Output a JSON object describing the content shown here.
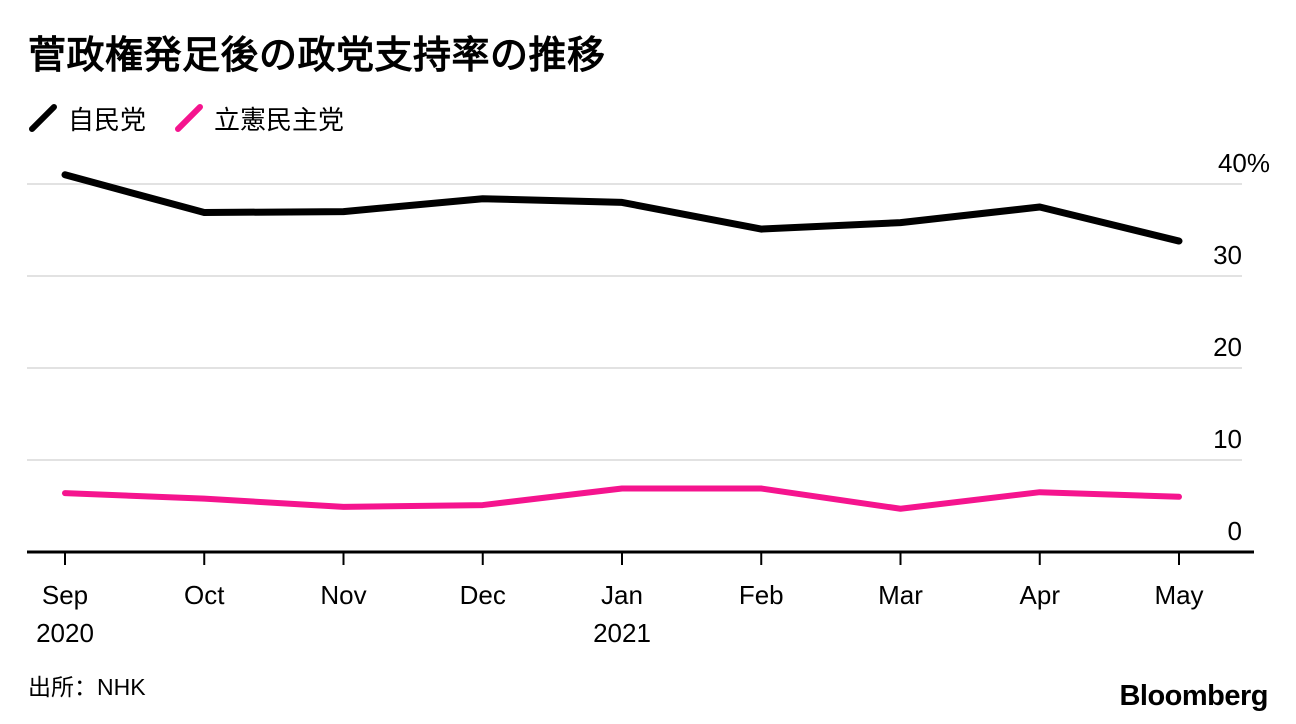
{
  "title": "菅政権発足後の政党支持率の推移",
  "legend": [
    {
      "label": "自民党",
      "color": "#000000"
    },
    {
      "label": "立憲民主党",
      "color": "#f5148e"
    }
  ],
  "source": "出所：NHK",
  "brand": "Bloomberg",
  "chart_data": {
    "type": "line",
    "title": "菅政権発足後の政党支持率の推移",
    "categories": [
      "Sep",
      "Oct",
      "Nov",
      "Dec",
      "Jan",
      "Feb",
      "Mar",
      "Apr",
      "May"
    ],
    "xticks": [
      {
        "label": "Sep",
        "sublabel": "2020"
      },
      {
        "label": "Oct"
      },
      {
        "label": "Nov"
      },
      {
        "label": "Dec"
      },
      {
        "label": "Jan",
        "sublabel": "2021"
      },
      {
        "label": "Feb"
      },
      {
        "label": "Mar"
      },
      {
        "label": "Apr"
      },
      {
        "label": "May"
      }
    ],
    "series": [
      {
        "name": "自民党",
        "color": "#000000",
        "values": [
          41.0,
          36.9,
          37.0,
          38.4,
          38.0,
          35.1,
          35.8,
          37.5,
          33.8
        ]
      },
      {
        "name": "立憲民主党",
        "color": "#f5148e",
        "values": [
          6.4,
          5.8,
          4.9,
          5.1,
          6.9,
          6.9,
          4.7,
          6.5,
          6.0
        ]
      }
    ],
    "yticks": [
      {
        "value": 40,
        "label": "40%"
      },
      {
        "value": 30,
        "label": "30"
      },
      {
        "value": 20,
        "label": "20"
      },
      {
        "value": 10,
        "label": "10"
      },
      {
        "value": 0,
        "label": "0"
      }
    ],
    "unit": "%",
    "ylim": [
      0,
      43
    ],
    "xlabel": "",
    "ylabel": "",
    "grid": "horizontal",
    "legend_position": "top-left"
  }
}
